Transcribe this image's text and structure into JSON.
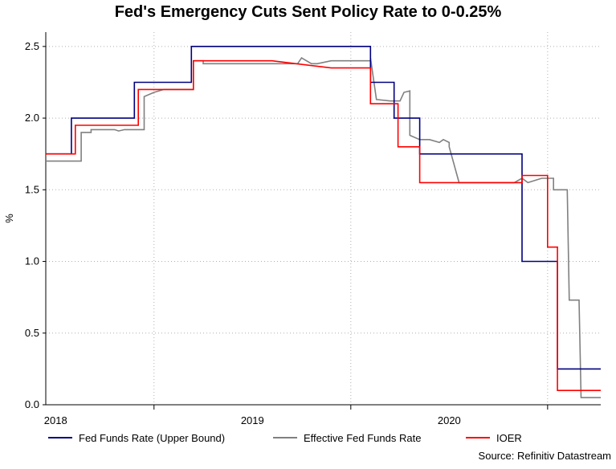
{
  "chart_data": {
    "type": "line",
    "title": "Fed's Emergency Cuts Sent Policy Rate to 0-0.25%",
    "xlabel": "",
    "ylabel": "%",
    "ylim": [
      0,
      2.6
    ],
    "xlim": [
      2017.45,
      2020.27
    ],
    "yticks": [
      {
        "value": 0.0,
        "label": "0.0"
      },
      {
        "value": 0.5,
        "label": "0.5"
      },
      {
        "value": 1.0,
        "label": "1.0"
      },
      {
        "value": 1.5,
        "label": "1.5"
      },
      {
        "value": 2.0,
        "label": "2.0"
      },
      {
        "value": 2.5,
        "label": "2.5"
      }
    ],
    "xticks": [
      {
        "value": 2017.5,
        "label": "2018"
      },
      {
        "value": 2018.5,
        "label": "2019"
      },
      {
        "value": 2019.5,
        "label": "2020"
      }
    ],
    "grid": true,
    "legend_position": "bottom",
    "series": [
      {
        "name": "Fed Funds Rate (Upper Bound)",
        "color": "#000080",
        "x": [
          2017.45,
          2017.58,
          2017.58,
          2017.9,
          2017.9,
          2018.19,
          2018.19,
          2018.43,
          2018.43,
          2019.1,
          2019.1,
          2019.22,
          2019.22,
          2019.35,
          2019.35,
          2019.55,
          2019.55,
          2019.67,
          2019.67,
          2019.87,
          2019.87,
          2020.05,
          2020.05,
          2020.1,
          2020.1,
          2020.27
        ],
        "values": [
          1.75,
          1.75,
          2.0,
          2.0,
          2.25,
          2.25,
          2.5,
          2.5,
          2.5,
          2.5,
          2.25,
          2.25,
          2.0,
          2.0,
          1.75,
          1.75,
          1.75,
          1.75,
          1.75,
          1.75,
          1.0,
          1.0,
          0.25,
          0.25,
          0.25,
          0.25
        ]
      },
      {
        "name": "Effective Fed Funds Rate",
        "color": "#808080",
        "x": [
          2017.45,
          2017.63,
          2017.63,
          2017.68,
          2017.68,
          2017.8,
          2017.82,
          2017.85,
          2017.95,
          2017.95,
          2018.0,
          2018.05,
          2018.12,
          2018.2,
          2018.2,
          2018.25,
          2018.25,
          2018.45,
          2018.6,
          2018.73,
          2018.75,
          2018.8,
          2018.83,
          2018.9,
          2018.95,
          2019.05,
          2019.1,
          2019.1,
          2019.13,
          2019.2,
          2019.25,
          2019.27,
          2019.3,
          2019.3,
          2019.35,
          2019.4,
          2019.45,
          2019.47,
          2019.5,
          2019.5,
          2019.55,
          2019.6,
          2019.7,
          2019.8,
          2019.83,
          2019.87,
          2019.9,
          2019.97,
          2020.0,
          2020.0,
          2020.03,
          2020.03,
          2020.05,
          2020.06,
          2020.1,
          2020.11,
          2020.16,
          2020.17,
          2020.22,
          2020.27
        ],
        "values": [
          1.7,
          1.7,
          1.9,
          1.9,
          1.92,
          1.92,
          1.91,
          1.92,
          1.92,
          2.15,
          2.18,
          2.2,
          2.2,
          2.2,
          2.4,
          2.4,
          2.38,
          2.38,
          2.38,
          2.38,
          2.42,
          2.38,
          2.38,
          2.4,
          2.4,
          2.4,
          2.4,
          2.42,
          2.13,
          2.12,
          2.12,
          2.18,
          2.19,
          1.88,
          1.85,
          1.85,
          1.83,
          1.85,
          1.83,
          1.8,
          1.55,
          1.55,
          1.55,
          1.55,
          1.55,
          1.58,
          1.55,
          1.58,
          1.58,
          1.58,
          1.58,
          1.5,
          1.5,
          1.5,
          1.5,
          0.73,
          0.73,
          0.05,
          0.05,
          0.05
        ]
      },
      {
        "name": "IOER",
        "color": "#ff0000",
        "x": [
          2017.45,
          2017.6,
          2017.6,
          2017.92,
          2017.92,
          2018.2,
          2018.2,
          2018.6,
          2018.6,
          2018.9,
          2018.9,
          2019.1,
          2019.1,
          2019.24,
          2019.24,
          2019.35,
          2019.35,
          2019.55,
          2019.55,
          2019.75,
          2019.75,
          2019.87,
          2019.87,
          2020.0,
          2020.0,
          2020.05,
          2020.05,
          2020.1,
          2020.1,
          2020.27
        ],
        "values": [
          1.75,
          1.75,
          1.95,
          1.95,
          2.2,
          2.2,
          2.4,
          2.4,
          2.4,
          2.35,
          2.35,
          2.35,
          2.1,
          2.1,
          1.8,
          1.8,
          1.55,
          1.55,
          1.55,
          1.55,
          1.55,
          1.55,
          1.6,
          1.6,
          1.1,
          1.1,
          0.1,
          0.1,
          0.1,
          0.1
        ]
      }
    ]
  },
  "footer": {
    "source": "Source: Refinitiv Datastream"
  }
}
